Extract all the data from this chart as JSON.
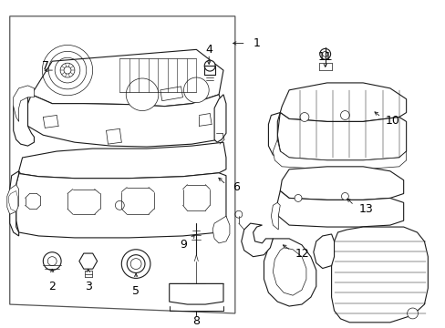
{
  "bg_color": "#ffffff",
  "line_color": "#1a1a1a",
  "label_color": "#000000",
  "figsize": [
    4.89,
    3.6
  ],
  "dpi": 100,
  "lw": 0.8,
  "lw_thin": 0.5,
  "label_fs": 8.5
}
